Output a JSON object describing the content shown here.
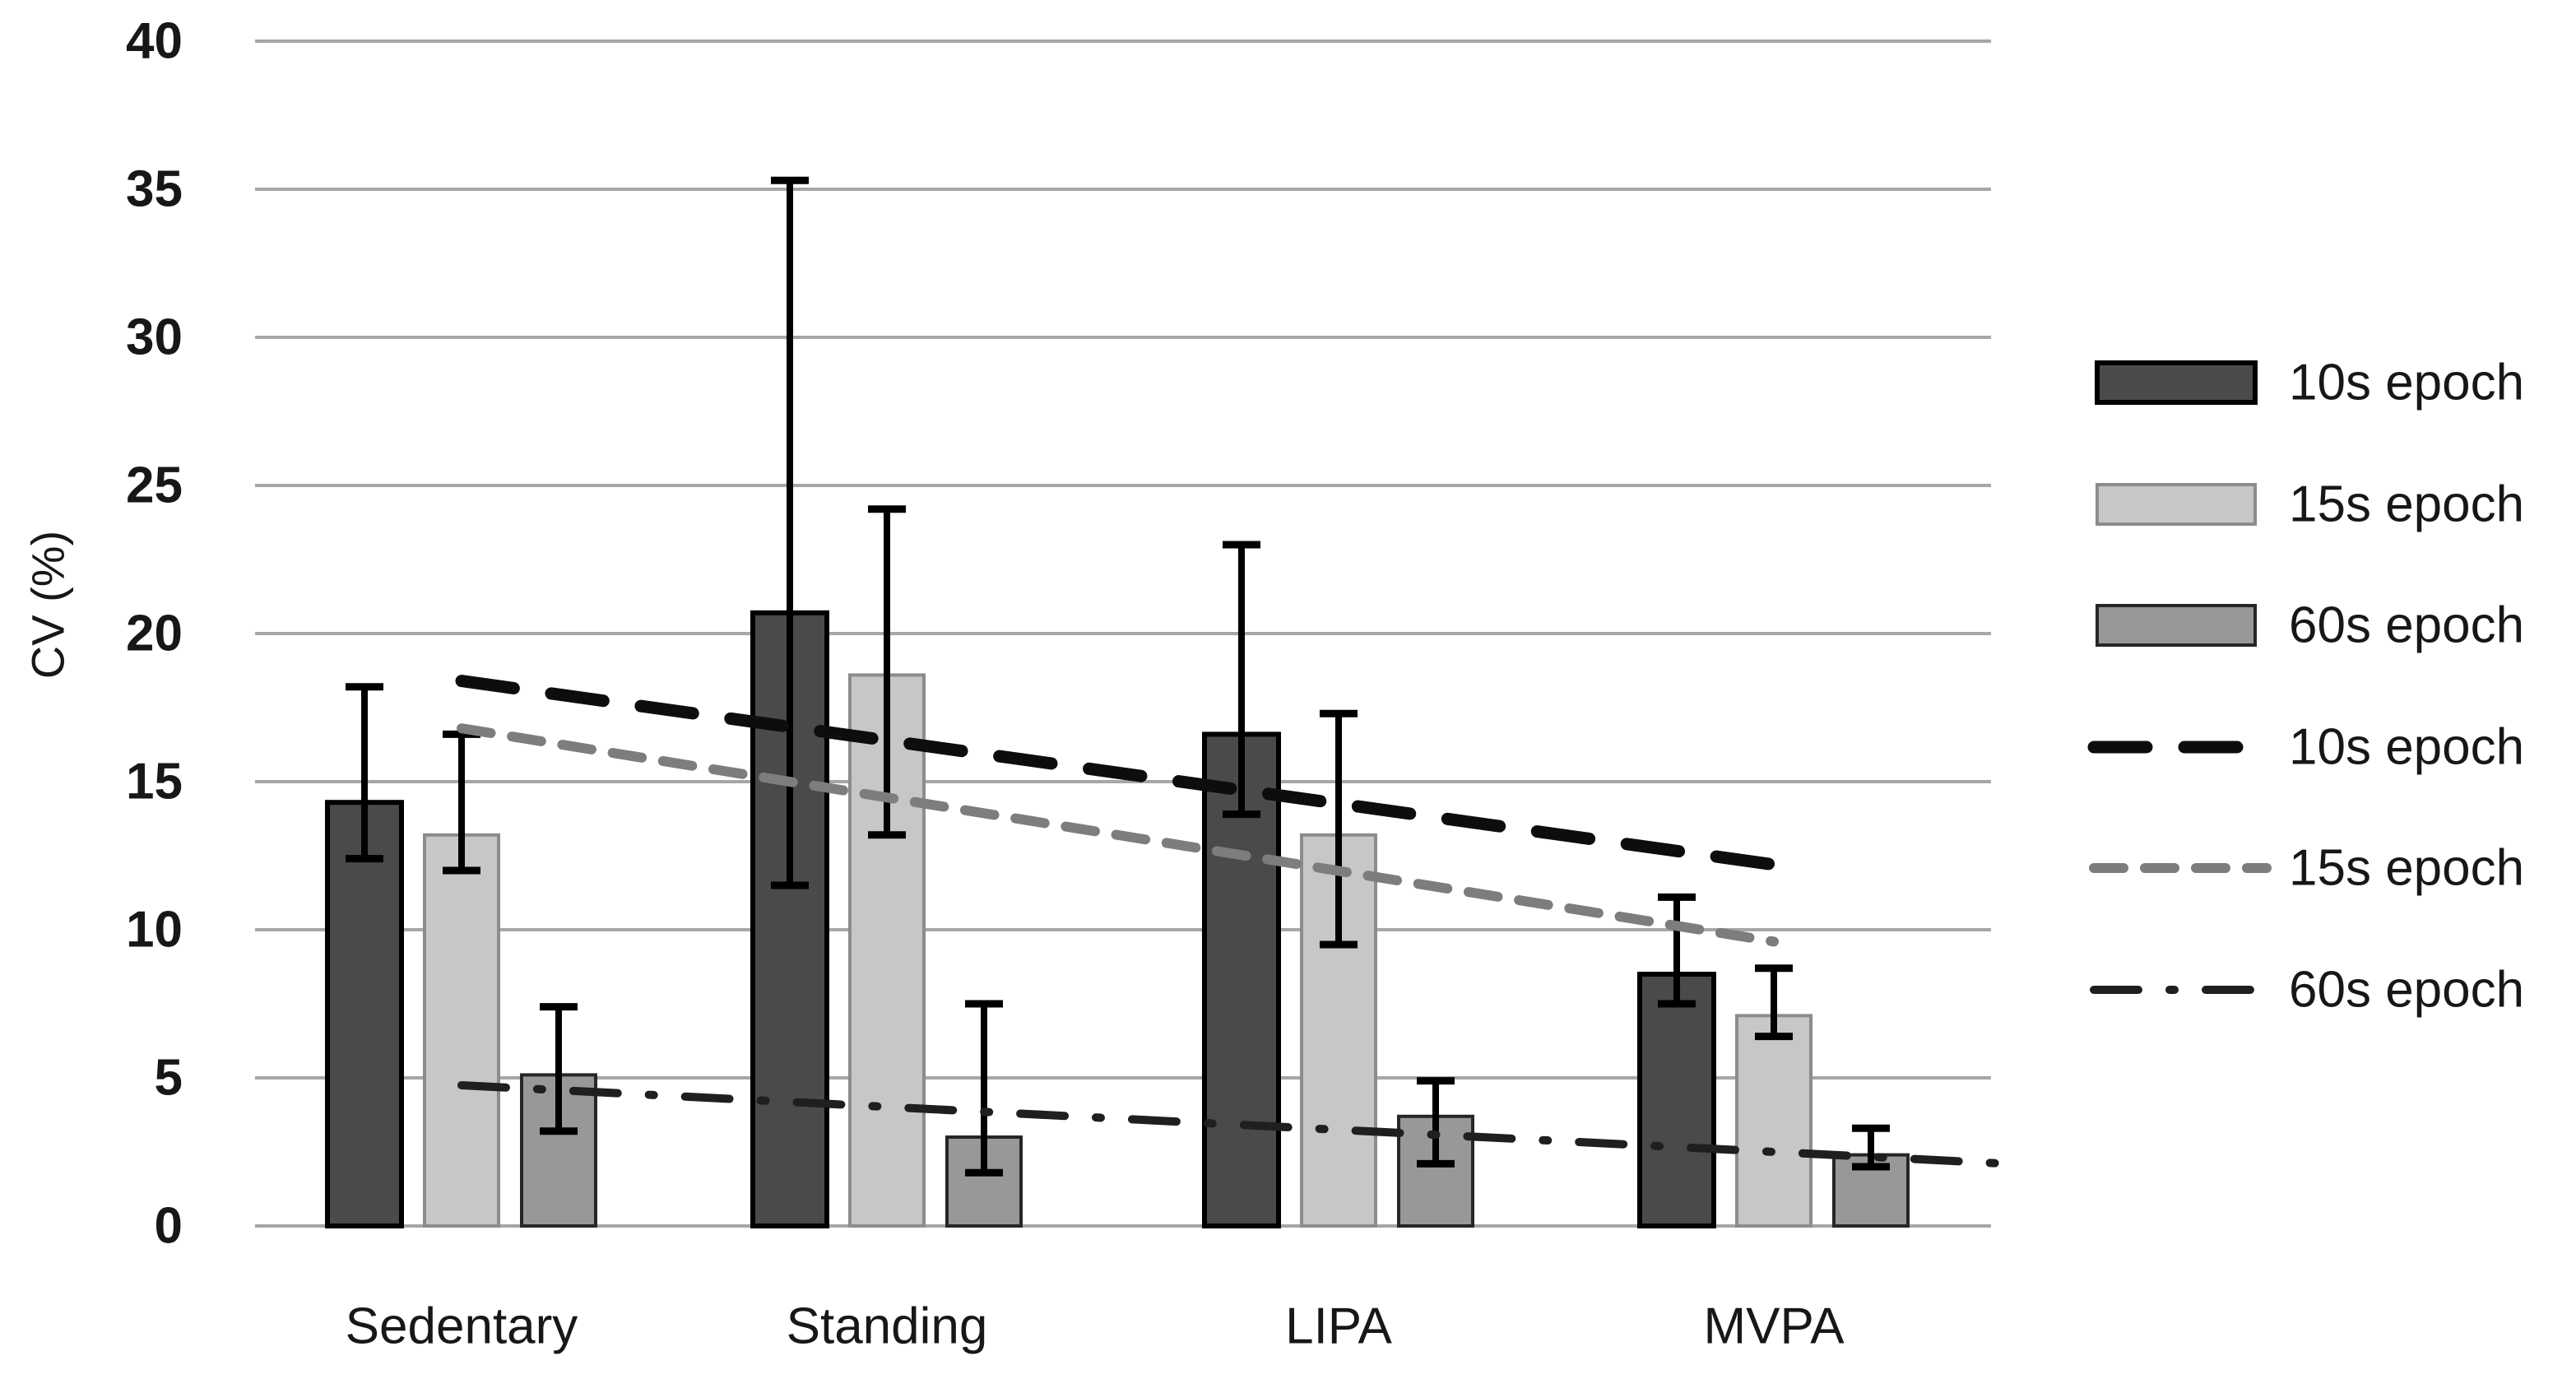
{
  "figure": {
    "background": "#ffffff",
    "description": "Grouped bar chart with error bars and three dashed trend lines"
  },
  "chart_data": {
    "type": "bar",
    "title": "",
    "xlabel": "",
    "ylabel": "CV (%)",
    "ylim": [
      0,
      40
    ],
    "ytick_step": 5,
    "ytick_labels": [
      "0",
      "5",
      "10",
      "15",
      "20",
      "25",
      "30",
      "35",
      "40"
    ],
    "grid": true,
    "legend_position": "right",
    "categories": [
      "Sedentary",
      "Standing",
      "LIPA",
      "MVPA"
    ],
    "bar_series": [
      {
        "name": "10s epoch",
        "fill": "#4a4a4a",
        "border": "#000000",
        "values": [
          14.3,
          20.7,
          16.6,
          8.5
        ],
        "error_low": [
          12.4,
          11.5,
          13.9,
          7.5
        ],
        "error_high": [
          18.2,
          35.3,
          23.0,
          11.1
        ]
      },
      {
        "name": "15s epoch",
        "fill": "#c7c7c7",
        "border": "#8c8c8c",
        "values": [
          13.2,
          18.6,
          13.2,
          7.1
        ],
        "error_low": [
          12.0,
          13.2,
          9.5,
          6.4
        ],
        "error_high": [
          16.6,
          24.2,
          17.3,
          8.7
        ]
      },
      {
        "name": "60s epoch",
        "fill": "#989898",
        "border": "#262626",
        "values": [
          5.1,
          3.0,
          3.7,
          2.4
        ],
        "error_low": [
          3.2,
          1.8,
          2.1,
          2.0
        ],
        "error_high": [
          7.4,
          7.5,
          4.9,
          3.3
        ]
      }
    ],
    "trend_series": [
      {
        "name": "10s epoch",
        "color": "#0d0d0d",
        "dash": "long",
        "start": 18.4,
        "end": 12.2,
        "extend_to_edge": false
      },
      {
        "name": "15s epoch",
        "color": "#7d7d7d",
        "dash": "short",
        "start": 16.8,
        "end": 9.6,
        "extend_to_edge": false
      },
      {
        "name": "60s epoch",
        "color": "#1f1f1f",
        "dash": "dashdot",
        "start": 4.75,
        "end": 2.5,
        "extend_to_edge": true
      }
    ],
    "legend_entries": [
      {
        "label": "10s epoch",
        "type": "bar",
        "series_index": 0
      },
      {
        "label": "15s epoch",
        "type": "bar",
        "series_index": 1
      },
      {
        "label": "60s epoch",
        "type": "bar",
        "series_index": 2
      },
      {
        "label": "10s epoch",
        "type": "line",
        "series_index": 0
      },
      {
        "label": "15s epoch",
        "type": "line",
        "series_index": 1
      },
      {
        "label": "60s epoch",
        "type": "line",
        "series_index": 2
      }
    ],
    "grid_color": "#a6a6a6",
    "error_bar_color": "#000000",
    "text_color": "#171717"
  }
}
